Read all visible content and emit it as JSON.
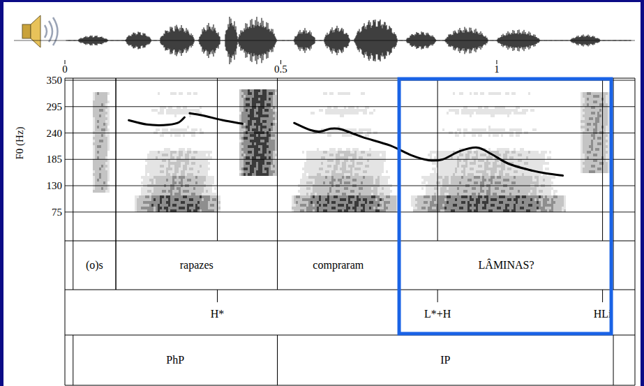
{
  "chart_data": {
    "type": "line",
    "y_label": "F0 (Hz)",
    "x": [
      0.148,
      0.189,
      0.229,
      0.261,
      0.277,
      0.283,
      0.289,
      0.318,
      0.366,
      0.411,
      0.47,
      0.531,
      0.568,
      0.592,
      0.616,
      0.64,
      0.689,
      0.753,
      0.802,
      0.842,
      0.874,
      0.915,
      0.955,
      0.987,
      1.027,
      1.076,
      1.116,
      1.153
    ],
    "series": [
      {
        "color": "#000000",
        "values": [
          266.6,
          257.8,
          256.4,
          260.8,
          272.5,
          null,
          281.2,
          276.9,
          266.6,
          259.3,
          null,
          260.8,
          246.1,
          243.2,
          249.1,
          247.6,
          231.5,
          213.9,
          193.5,
          183.2,
          184.7,
          202.3,
          209.6,
          196.4,
          175.9,
          162.8,
          155.4,
          151.1
        ]
      }
    ],
    "xlim": [
      0,
      1.32
    ],
    "xticks": [
      0,
      0.5,
      1
    ],
    "ylim": [
      15,
      350
    ],
    "yticks": [
      75,
      130,
      185,
      240,
      295,
      350
    ],
    "grid": true,
    "tiers": [
      {
        "intervals": [
          {
            "start": 0.019,
            "end": 0.118,
            "label": "(o)s"
          },
          {
            "start": 0.118,
            "end": 0.492,
            "label": "rapazes"
          },
          {
            "start": 0.492,
            "end": 0.774,
            "label": "compraram"
          },
          {
            "start": 0.774,
            "end": 1.27,
            "label": "LÂMINAS?"
          }
        ]
      },
      {
        "points": [
          {
            "time": 0.353,
            "label": "H*"
          },
          {
            "time": 0.863,
            "label": "L*+H"
          },
          {
            "time": 1.245,
            "label": "HLi"
          }
        ]
      },
      {
        "intervals": [
          {
            "start": 0.019,
            "end": 0.492,
            "label": "PhP"
          },
          {
            "start": 0.492,
            "end": 1.27,
            "label": "IP"
          }
        ]
      }
    ]
  }
}
